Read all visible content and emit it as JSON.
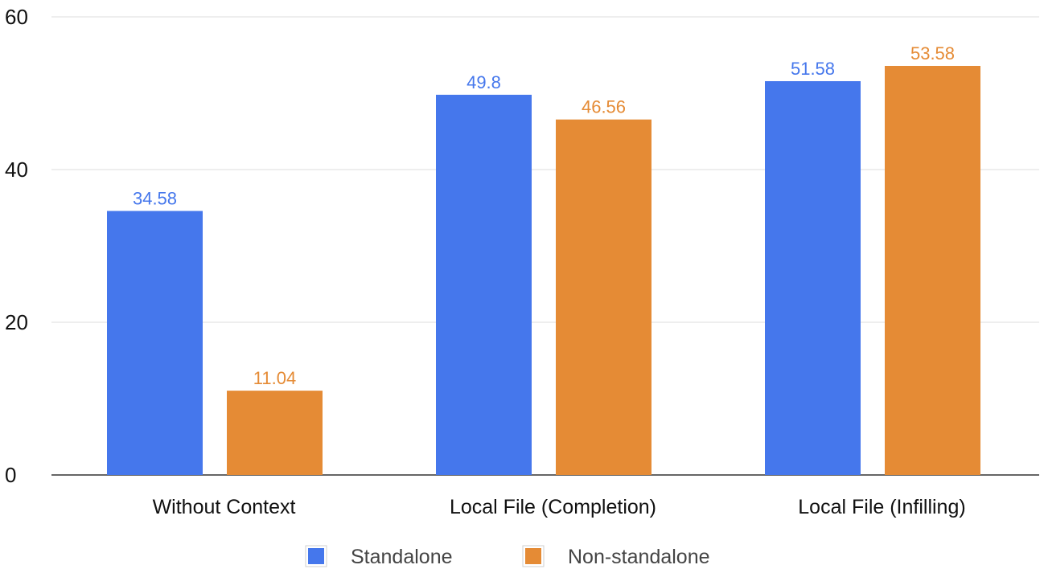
{
  "chart_data": {
    "type": "bar",
    "title": "",
    "xlabel": "",
    "ylabel": "",
    "categories": [
      "Without Context",
      "Local File (Completion)",
      "Local File (Infilling)"
    ],
    "series": [
      {
        "name": "Standalone",
        "values": [
          34.58,
          49.8,
          51.58
        ],
        "color": "#4577EC"
      },
      {
        "name": "Non-standalone",
        "values": [
          11.04,
          46.56,
          53.58
        ],
        "color": "#E58B35"
      }
    ],
    "ylim": [
      0,
      60
    ],
    "yticks": [
      0,
      20,
      40,
      60
    ],
    "grid": true,
    "legend_position": "bottom-center",
    "colors": {
      "grid": "#dddddd",
      "axis": "#333333"
    }
  }
}
